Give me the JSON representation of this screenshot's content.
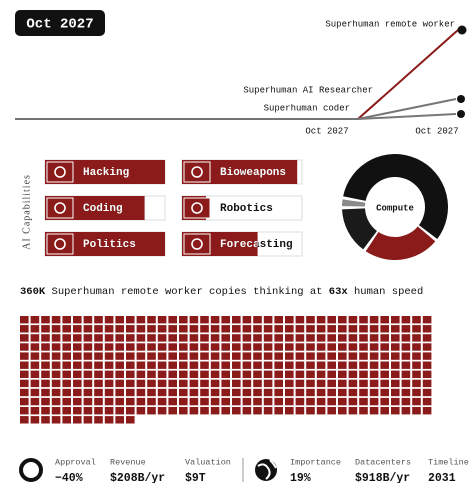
{
  "date": "Oct 2027",
  "milestones": {
    "labels": [
      "Superhuman remote worker",
      "Superhuman AI Researcher",
      "Superhuman coder"
    ],
    "x_labels": [
      "Oct 2027",
      "Oct 2027"
    ]
  },
  "capabilities": {
    "title": "AI Capabilities",
    "items": [
      {
        "name": "Hacking",
        "progress": 100
      },
      {
        "name": "Bioweapons",
        "progress": 96
      },
      {
        "name": "Coding",
        "progress": 83
      },
      {
        "name": "Robotics",
        "progress": 20
      },
      {
        "name": "Politics",
        "progress": 100
      },
      {
        "name": "Forecasting",
        "progress": 63
      }
    ]
  },
  "compute": {
    "label": "Compute",
    "segments": [
      {
        "value": 58,
        "color": "#111111"
      },
      {
        "value": 24,
        "color": "#8b1a1a"
      },
      {
        "value": 15,
        "color": "#1a1a1a"
      },
      {
        "value": 3,
        "color": "#8a8a8a"
      }
    ]
  },
  "headline": {
    "count": "360K",
    "middle": " Superhuman remote worker copies thinking at ",
    "speed": "63x",
    "end": " human speed"
  },
  "copies": {
    "squares": 440
  },
  "stats": [
    {
      "label": "Approval",
      "value": "−40%"
    },
    {
      "label": "Revenue",
      "value": "$208B/yr"
    },
    {
      "label": "Valuation",
      "value": "$9T"
    },
    {
      "label": "Importance",
      "value": "19%"
    },
    {
      "label": "Datacenters",
      "value": "$918B/yr"
    },
    {
      "label": "Timeline",
      "value": "2031"
    }
  ]
}
